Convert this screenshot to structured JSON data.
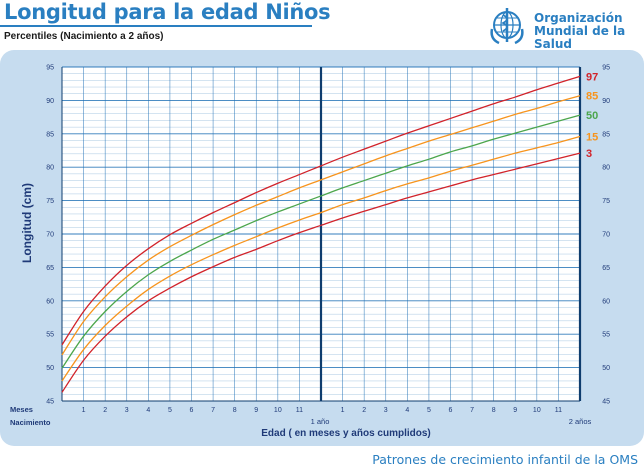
{
  "header": {
    "title": "Longitud para la edad Niños",
    "subtitle": "Percentiles (Nacimiento a 2 años)"
  },
  "logo": {
    "line1": "Organización",
    "line2": "Mundial de la Salud",
    "icon": "who-emblem-icon"
  },
  "footer": {
    "text": "Patrones de crecimiento infantil de la OMS"
  },
  "colors": {
    "title_blue": "#2a7fc1",
    "panel_bg": "#c6dcef",
    "grid": "#1e6fb5",
    "p3_97": "#d2232a",
    "p15_85": "#f7941d",
    "p50": "#4ca64c"
  },
  "chart_data": {
    "type": "line",
    "ylabel": "Longitud (cm)",
    "xlabel": "Edad ( en meses y años cumplidos)",
    "x_start_label": "Nacimiento",
    "x_months_label": "Meses",
    "year_labels": [
      "1 año",
      "2 años"
    ],
    "ylim": [
      45,
      95
    ],
    "y_ticks": [
      45,
      50,
      55,
      60,
      65,
      70,
      75,
      80,
      85,
      90,
      95
    ],
    "xlim": [
      0,
      24
    ],
    "month_tick_labels": [
      "1",
      "2",
      "3",
      "4",
      "5",
      "6",
      "7",
      "8",
      "9",
      "10",
      "11",
      "",
      "1",
      "2",
      "3",
      "4",
      "5",
      "6",
      "7",
      "8",
      "9",
      "10",
      "11"
    ],
    "grid": true,
    "x": [
      0,
      1,
      2,
      3,
      4,
      5,
      6,
      7,
      8,
      9,
      10,
      11,
      12,
      13,
      14,
      15,
      16,
      17,
      18,
      19,
      20,
      21,
      22,
      23,
      24
    ],
    "series": [
      {
        "name": "97",
        "values": [
          53.4,
          58.4,
          62.2,
          65.3,
          67.8,
          69.9,
          71.6,
          73.2,
          74.7,
          76.2,
          77.6,
          78.9,
          80.2,
          81.5,
          82.7,
          83.9,
          85.1,
          86.2,
          87.3,
          88.4,
          89.5,
          90.5,
          91.6,
          92.6,
          93.6
        ]
      },
      {
        "name": "85",
        "values": [
          51.9,
          56.9,
          60.6,
          63.6,
          66.1,
          68.1,
          69.8,
          71.4,
          72.9,
          74.3,
          75.6,
          76.9,
          78.1,
          79.3,
          80.5,
          81.7,
          82.8,
          83.9,
          84.9,
          85.9,
          86.9,
          87.9,
          88.8,
          89.8,
          90.7
        ]
      },
      {
        "name": "50",
        "values": [
          49.9,
          54.7,
          58.4,
          61.4,
          63.9,
          65.9,
          67.6,
          69.2,
          70.6,
          72.0,
          73.3,
          74.5,
          75.7,
          76.9,
          78.0,
          79.1,
          80.2,
          81.2,
          82.3,
          83.2,
          84.2,
          85.1,
          86.0,
          86.9,
          87.8
        ]
      },
      {
        "name": "15",
        "values": [
          48.0,
          52.7,
          56.3,
          59.2,
          61.7,
          63.7,
          65.4,
          66.9,
          68.3,
          69.6,
          70.9,
          72.1,
          73.2,
          74.4,
          75.4,
          76.5,
          77.5,
          78.4,
          79.4,
          80.3,
          81.2,
          82.1,
          82.9,
          83.7,
          84.6
        ]
      },
      {
        "name": "3",
        "values": [
          46.3,
          51.1,
          54.7,
          57.6,
          60.0,
          61.9,
          63.6,
          65.1,
          66.5,
          67.7,
          69.0,
          70.2,
          71.3,
          72.4,
          73.4,
          74.4,
          75.4,
          76.3,
          77.2,
          78.1,
          78.9,
          79.7,
          80.5,
          81.3,
          82.1
        ]
      }
    ]
  }
}
